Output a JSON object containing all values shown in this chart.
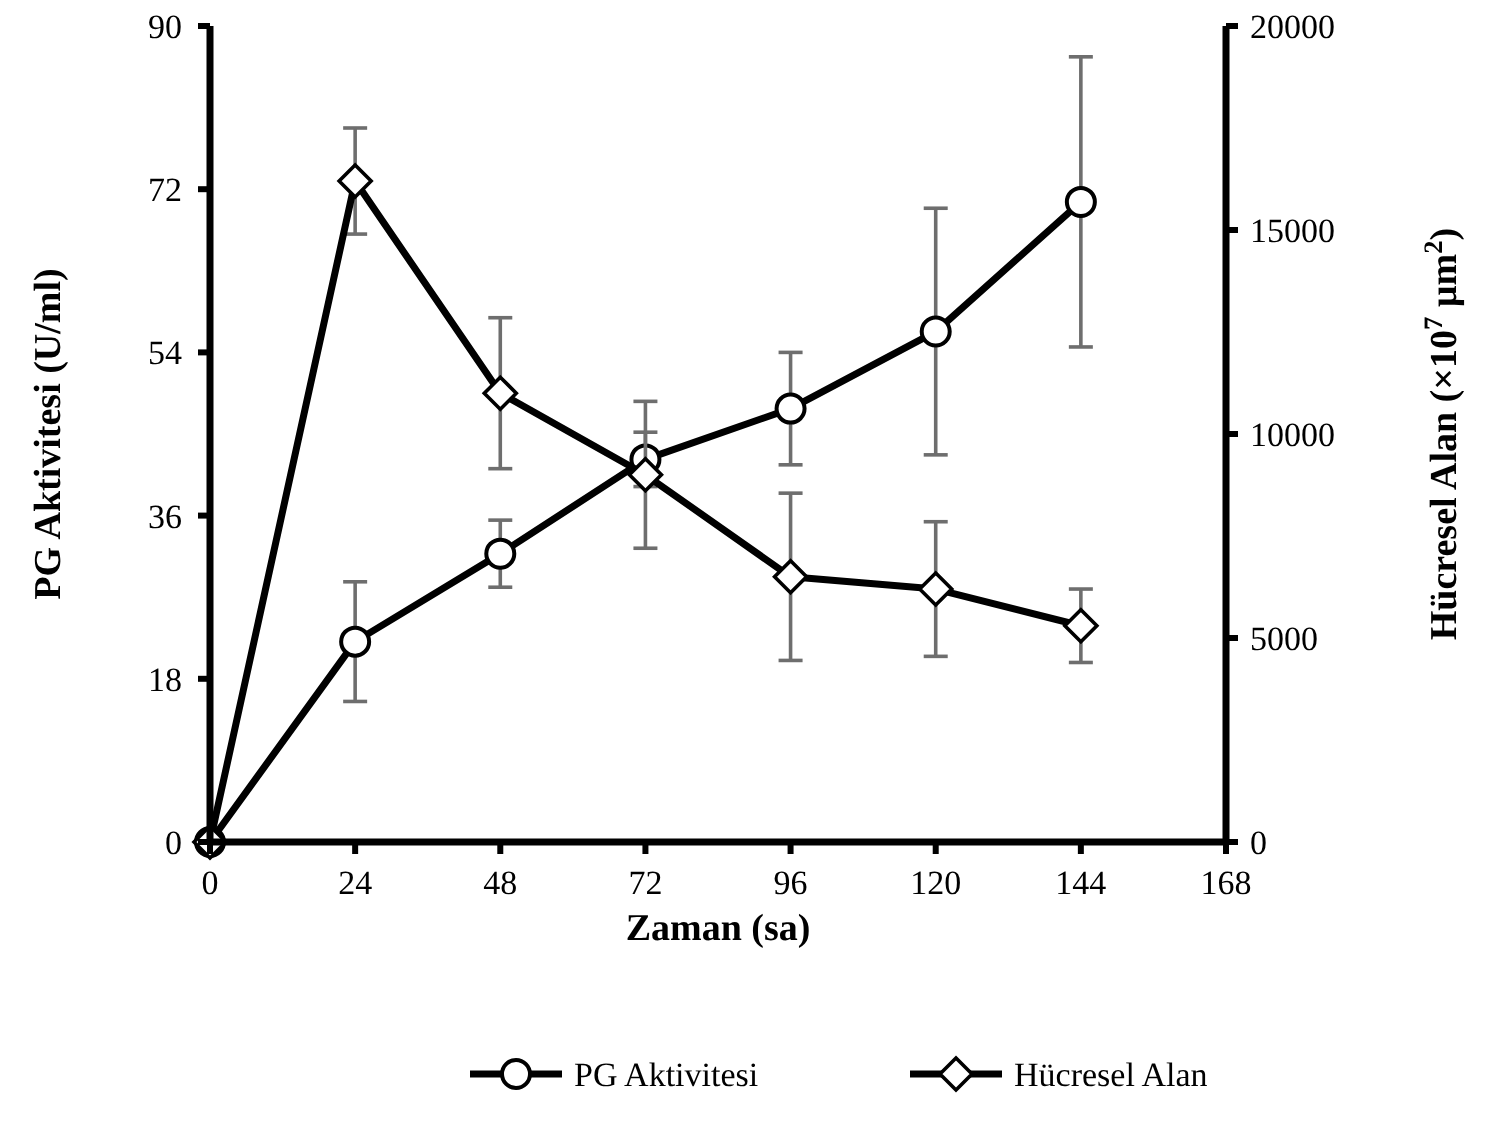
{
  "chart_data": {
    "type": "line",
    "xlabel": "Zaman (sa)",
    "ylabel": "PG Aktivitesi (U/ml)",
    "y2label": "Hücresel Alan (×10$^{7}$ µm$^{2}$)",
    "x": [
      0,
      24,
      48,
      72,
      96,
      120,
      144
    ],
    "xlim": [
      0,
      168
    ],
    "xticks": [
      0,
      24,
      48,
      72,
      96,
      120,
      144,
      168
    ],
    "ylim": [
      0,
      90
    ],
    "yticks": [
      0,
      18,
      36,
      54,
      72,
      90
    ],
    "y2lim": [
      0,
      20000
    ],
    "y2ticks": [
      0,
      5000,
      10000,
      15000,
      20000
    ],
    "series": [
      {
        "name": "PG Aktivitesi",
        "color": "#000000",
        "marker": "circle",
        "values": [
          0,
          22.1,
          31.8,
          42.2,
          47.8,
          56.3,
          70.6
        ],
        "errors": [
          null,
          6.6,
          3.7,
          3,
          6.2,
          13.6,
          16
        ]
      },
      {
        "name": "Hücresel Alan",
        "color": "#000000",
        "marker": "diamond",
        "axis": "y2",
        "values": [
          0,
          16200,
          11000,
          9000,
          6500,
          6200,
          5300
        ],
        "errors": [
          null,
          1300,
          1850,
          1800,
          2050,
          1650,
          900
        ]
      }
    ],
    "grid": false,
    "legend": "bottom",
    "line_style": "solid"
  }
}
